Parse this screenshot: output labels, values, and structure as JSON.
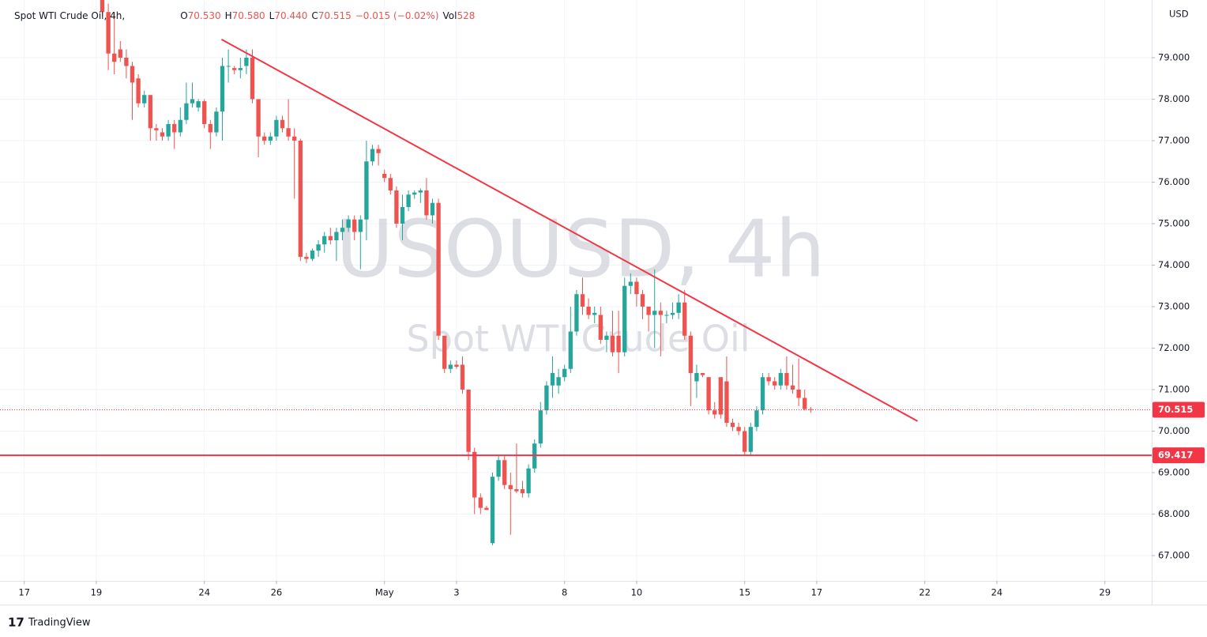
{
  "chart_data": {
    "type": "candlestick",
    "watermark": "USOUSD, 4h",
    "watermark_subtitle": "Spot WTI Crude Oil",
    "header": {
      "symbol": "Spot WTI Crude Oil, 4h,",
      "ohlc": [
        {
          "label": "O",
          "value": "70.530"
        },
        {
          "label": "H",
          "value": "70.580"
        },
        {
          "label": "L",
          "value": "70.440"
        },
        {
          "label": "C",
          "value": "70.515"
        }
      ],
      "change": "−0.015 (−0.02%)",
      "volume_label": "Vol",
      "volume": "528"
    },
    "currency": "USD",
    "brand": "TradingView",
    "up_color": "#26a69a",
    "down_color": "#ef5350",
    "grid": true,
    "xlim": [
      -4.04,
      187.8
    ],
    "ylim": [
      66.39,
      80.39
    ],
    "xticks": [
      {
        "value": 0,
        "label": "17"
      },
      {
        "value": 12,
        "label": "19"
      },
      {
        "value": 30,
        "label": "24"
      },
      {
        "value": 42,
        "label": "26"
      },
      {
        "value": 60,
        "label": "May"
      },
      {
        "value": 72,
        "label": "3"
      },
      {
        "value": 90,
        "label": "8"
      },
      {
        "value": 102,
        "label": "10"
      },
      {
        "value": 120,
        "label": "15"
      },
      {
        "value": 132,
        "label": "17"
      },
      {
        "value": 150,
        "label": "22"
      },
      {
        "value": 162,
        "label": "24"
      },
      {
        "value": 180,
        "label": "29"
      }
    ],
    "yticks": [
      {
        "value": 67,
        "label": "67.000"
      },
      {
        "value": 68,
        "label": "68.000"
      },
      {
        "value": 69,
        "label": "69.000"
      },
      {
        "value": 70,
        "label": "70.000"
      },
      {
        "value": 71,
        "label": "71.000"
      },
      {
        "value": 72,
        "label": "72.000"
      },
      {
        "value": 73,
        "label": "73.000"
      },
      {
        "value": 74,
        "label": "74.000"
      },
      {
        "value": 75,
        "label": "75.000"
      },
      {
        "value": 76,
        "label": "76.000"
      },
      {
        "value": 77,
        "label": "77.000"
      },
      {
        "value": 78,
        "label": "78.000"
      },
      {
        "value": 79,
        "label": "79.000"
      }
    ],
    "x": [
      13,
      14,
      15,
      16,
      17,
      18,
      19,
      20,
      21,
      22,
      23,
      24,
      25,
      26,
      27,
      28,
      29,
      30,
      31,
      32,
      33,
      34,
      35,
      36,
      37,
      38,
      39,
      40,
      41,
      42,
      43,
      44,
      45,
      46,
      47,
      48,
      49,
      50,
      51,
      52,
      53,
      54,
      55,
      56,
      57,
      58,
      59,
      60,
      61,
      62,
      63,
      64,
      65,
      66,
      67,
      68,
      69,
      70,
      71,
      72,
      73,
      74,
      75,
      76,
      77,
      78,
      79,
      80,
      81,
      82,
      83,
      84,
      85,
      86,
      87,
      88,
      89,
      90,
      91,
      92,
      93,
      94,
      95,
      96,
      97,
      98,
      99,
      100,
      101,
      102,
      103,
      104,
      105,
      106,
      107,
      108,
      109,
      110,
      111,
      112,
      113,
      114,
      115,
      116,
      117,
      118,
      119,
      120,
      121,
      122,
      123,
      124,
      125,
      126,
      127,
      128,
      129,
      130,
      131
    ],
    "open": [
      80.5,
      80.1,
      79.1,
      79.2,
      79.0,
      78.8,
      78.5,
      77.9,
      78.1,
      77.3,
      77.2,
      77.1,
      77.4,
      77.2,
      77.5,
      77.9,
      77.8,
      77.95,
      77.4,
      77.2,
      77.7,
      78.8,
      78.75,
      78.7,
      78.8,
      79.0,
      78.0,
      77.1,
      77.0,
      77.1,
      77.5,
      77.3,
      77.1,
      77.0,
      74.2,
      74.15,
      74.35,
      74.5,
      74.7,
      74.6,
      74.8,
      74.9,
      75.1,
      74.8,
      75.1,
      76.5,
      76.8,
      76.2,
      76.1,
      75.8,
      75.0,
      75.4,
      75.7,
      75.75,
      75.8,
      75.2,
      75.5,
      72.3,
      71.5,
      71.6,
      71.6,
      71.0,
      69.5,
      68.4,
      68.15,
      67.3,
      68.9,
      69.3,
      68.7,
      68.6,
      68.6,
      68.5,
      69.1,
      69.7,
      70.5,
      71.1,
      71.1,
      71.3,
      71.5,
      72.4,
      73.3,
      73.0,
      72.8,
      72.8,
      72.2,
      72.3,
      72.3,
      71.9,
      73.5,
      73.6,
      73.3,
      73.0,
      72.8,
      72.9,
      72.8,
      72.8,
      72.85,
      73.1,
      72.3,
      71.2,
      71.4,
      71.3,
      70.5,
      71.3,
      71.2,
      70.2,
      70.1,
      70.0,
      69.5,
      70.1,
      70.5,
      71.3,
      71.2,
      71.1,
      71.4,
      71.1,
      71.0,
      70.8,
      70.53
    ],
    "high": [
      80.6,
      80.3,
      80.1,
      79.4,
      79.2,
      78.9,
      78.6,
      78.2,
      78.1,
      77.4,
      77.3,
      77.5,
      77.5,
      77.8,
      78.4,
      78.4,
      78.0,
      78.0,
      77.5,
      77.8,
      79.0,
      79.2,
      78.8,
      79.0,
      79.2,
      79.2,
      78.0,
      77.2,
      77.2,
      77.6,
      77.6,
      78.0,
      77.3,
      77.05,
      74.3,
      74.4,
      74.6,
      74.8,
      74.9,
      74.9,
      75.1,
      75.2,
      75.2,
      75.2,
      77.0,
      76.9,
      76.9,
      76.3,
      76.2,
      75.9,
      75.7,
      75.8,
      75.8,
      75.85,
      76.1,
      75.6,
      75.6,
      72.3,
      71.7,
      71.7,
      71.8,
      71.0,
      69.6,
      68.5,
      68.2,
      69.0,
      69.4,
      69.4,
      69.0,
      69.7,
      68.8,
      69.2,
      69.8,
      70.7,
      71.2,
      71.8,
      71.5,
      71.6,
      73.0,
      73.4,
      73.7,
      73.2,
      73.0,
      73.0,
      72.4,
      72.9,
      72.9,
      73.7,
      73.8,
      73.7,
      73.4,
      73.0,
      73.9,
      73.1,
      72.9,
      73.1,
      73.3,
      73.4,
      72.4,
      71.6,
      71.4,
      71.3,
      70.7,
      71.3,
      71.8,
      70.3,
      70.2,
      70.1,
      70.2,
      70.6,
      71.4,
      71.4,
      71.3,
      71.5,
      71.8,
      71.6,
      71.75,
      71.0,
      70.58
    ],
    "low": [
      80.0,
      78.7,
      78.6,
      78.9,
      78.5,
      77.5,
      77.8,
      77.8,
      77.0,
      77.0,
      77.0,
      77.0,
      76.8,
      77.1,
      77.4,
      77.8,
      77.7,
      77.3,
      76.8,
      77.1,
      77.0,
      78.4,
      78.6,
      78.5,
      78.6,
      77.9,
      76.6,
      76.9,
      76.9,
      77.0,
      77.2,
      77.0,
      75.6,
      74.1,
      74.05,
      74.1,
      74.2,
      74.3,
      74.5,
      74.1,
      74.6,
      74.8,
      74.6,
      73.9,
      74.6,
      76.4,
      76.4,
      76.0,
      75.7,
      74.9,
      74.6,
      75.3,
      75.6,
      75.5,
      75.1,
      75.0,
      72.2,
      71.4,
      71.4,
      71.5,
      70.9,
      69.3,
      68.0,
      68.0,
      68.1,
      67.25,
      68.8,
      68.6,
      67.5,
      68.5,
      68.4,
      68.4,
      69.0,
      69.6,
      70.4,
      70.8,
      70.9,
      71.2,
      71.4,
      72.3,
      72.8,
      72.7,
      72.6,
      72.1,
      71.9,
      71.8,
      71.4,
      71.8,
      73.3,
      73.0,
      72.7,
      72.4,
      72.0,
      71.8,
      72.6,
      72.7,
      72.7,
      72.2,
      70.6,
      70.8,
      71.3,
      70.4,
      70.3,
      70.3,
      70.1,
      70.0,
      69.9,
      69.4,
      69.4,
      70.0,
      70.4,
      71.1,
      71.0,
      71.0,
      71.0,
      70.9,
      70.6,
      70.5,
      70.44
    ],
    "close": [
      80.1,
      79.1,
      78.9,
      79.0,
      78.8,
      78.4,
      77.9,
      78.1,
      77.3,
      77.25,
      77.1,
      77.4,
      77.2,
      77.5,
      77.9,
      78.0,
      77.95,
      77.4,
      77.2,
      77.7,
      78.8,
      78.8,
      78.7,
      78.75,
      79.0,
      78.0,
      77.1,
      77.0,
      77.1,
      77.5,
      77.3,
      77.1,
      77.0,
      74.2,
      74.15,
      74.35,
      74.5,
      74.7,
      74.6,
      74.8,
      74.9,
      75.1,
      74.8,
      75.1,
      76.5,
      76.8,
      76.7,
      76.1,
      75.8,
      75.0,
      75.4,
      75.7,
      75.75,
      75.8,
      75.2,
      75.5,
      72.3,
      71.5,
      71.6,
      71.55,
      71.0,
      69.5,
      68.4,
      68.15,
      68.1,
      68.9,
      69.3,
      68.7,
      68.6,
      68.55,
      68.5,
      69.1,
      69.7,
      70.5,
      71.1,
      71.4,
      71.3,
      71.5,
      72.4,
      73.3,
      73.0,
      72.8,
      72.85,
      72.2,
      72.3,
      71.9,
      71.9,
      73.5,
      73.6,
      73.3,
      73.0,
      72.8,
      72.9,
      72.8,
      72.8,
      72.85,
      73.1,
      72.3,
      71.4,
      71.4,
      71.35,
      70.5,
      70.4,
      70.4,
      70.2,
      70.1,
      70.0,
      69.5,
      70.1,
      70.5,
      71.3,
      71.2,
      71.1,
      71.4,
      71.1,
      71.0,
      70.8,
      70.53,
      70.515
    ],
    "trend_line": {
      "color": "#f23645",
      "x": [
        32.86,
        148.8
      ],
      "y": [
        79.44,
        70.24
      ]
    },
    "support_line": {
      "color": "#f23645",
      "value": 69.417
    },
    "last_price": {
      "color": "#f23645",
      "value": 70.515
    }
  }
}
